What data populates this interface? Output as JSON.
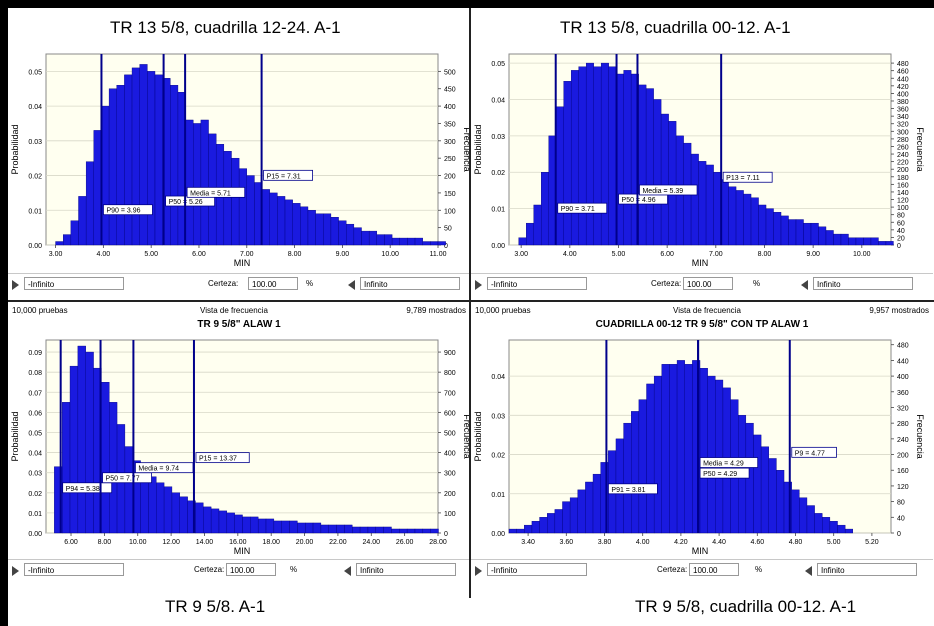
{
  "captions": [
    "TR 13 5/8, cuadrilla 12-24. A-1",
    "TR 13 5/8, cuadrilla 00-12. A-1",
    "TR 9 5/8. A-1",
    "TR 9 5/8, cuadrilla 00-12. A-1"
  ],
  "colors": {
    "bar": "#1a1adf",
    "bar_edge": "#000080",
    "marker": "#00008b",
    "plot_bg": "#fffff0",
    "grid": "#d8d8c8"
  },
  "panels": [
    {
      "trials": "",
      "view": "",
      "shown": "",
      "title": "",
      "controls": {
        "lower": "-Infinito",
        "certainty_label": "Certeza:",
        "certainty": "100.00",
        "unit": "%",
        "upper": "Infinito"
      }
    },
    {
      "trials": "",
      "view": "",
      "shown": "",
      "title": "",
      "controls": {
        "lower": "-Infinito",
        "certainty_label": "Certeza:",
        "certainty": "100.00",
        "unit": "%",
        "upper": "Infinito"
      }
    },
    {
      "trials": "10,000 pruebas",
      "view": "Vista de frecuencia",
      "shown": "9,789 mostrados",
      "title": "TR 9 5/8\" ALAW 1",
      "controls": {
        "lower": "-Infinito",
        "certainty_label": "Certeza:",
        "certainty": "100.00",
        "unit": "%",
        "upper": "Infinito"
      }
    },
    {
      "trials": "10,000 pruebas",
      "view": "Vista de frecuencia",
      "shown": "9,957 mostrados",
      "title": "CUADRILLA 00-12 TR 9 5/8\" CON TP ALAW 1",
      "controls": {
        "lower": "-Infinito",
        "certainty_label": "Certeza:",
        "certainty": "100.00",
        "unit": "%",
        "upper": "Infinito"
      }
    }
  ],
  "chart_data": [
    {
      "type": "bar",
      "xlabel": "MIN",
      "ylabel": "Probabilidad",
      "y2label": "Frecuencia",
      "xlim": [
        2.8,
        11.0
      ],
      "ylim": [
        0,
        0.055
      ],
      "y2lim": [
        0,
        550
      ],
      "xticks": [
        "3.00",
        "4.00",
        "5.00",
        "6.00",
        "7.00",
        "8.00",
        "9.00",
        "10.00",
        "11.00"
      ],
      "yticks": [
        "0.00",
        "0.01",
        "0.02",
        "0.03",
        "0.04",
        "0.05"
      ],
      "y2ticks": [
        "0",
        "50",
        "100",
        "150",
        "200",
        "250",
        "300",
        "350",
        "400",
        "450",
        "500"
      ],
      "bin_start": 3.0,
      "bin_width": 0.16,
      "values": [
        0.001,
        0.003,
        0.007,
        0.014,
        0.024,
        0.033,
        0.04,
        0.045,
        0.046,
        0.049,
        0.051,
        0.052,
        0.05,
        0.049,
        0.048,
        0.046,
        0.044,
        0.036,
        0.035,
        0.036,
        0.032,
        0.029,
        0.027,
        0.025,
        0.022,
        0.02,
        0.018,
        0.016,
        0.015,
        0.014,
        0.013,
        0.012,
        0.011,
        0.01,
        0.009,
        0.009,
        0.008,
        0.007,
        0.006,
        0.005,
        0.004,
        0.004,
        0.003,
        0.003,
        0.002,
        0.002,
        0.002,
        0.002,
        0.001,
        0.001,
        0.001
      ],
      "markers": [
        {
          "x": 3.96,
          "label": "P90 = 3.96",
          "label_y": 0.0093
        },
        {
          "x": 5.26,
          "label": "P50 = 5.26",
          "label_y": 0.0118
        },
        {
          "x": 5.71,
          "label": "Media = 5.71",
          "label_y": 0.0143
        },
        {
          "x": 7.31,
          "label": "P15 = 7.31",
          "label_y": 0.0192
        }
      ]
    },
    {
      "type": "bar",
      "xlabel": "MIN",
      "ylabel": "Probabilidad",
      "y2label": "Frecuencia",
      "xlim": [
        2.75,
        10.6
      ],
      "ylim": [
        0,
        0.0525
      ],
      "y2lim": [
        0,
        504
      ],
      "xticks": [
        "3.00",
        "4.00",
        "5.00",
        "6.00",
        "7.00",
        "8.00",
        "9.00",
        "10.00"
      ],
      "yticks": [
        "0.00",
        "0.01",
        "0.02",
        "0.03",
        "0.04",
        "0.05"
      ],
      "y2ticks": [
        "0",
        "20",
        "40",
        "60",
        "80",
        "100",
        "120",
        "140",
        "160",
        "180",
        "200",
        "220",
        "240",
        "260",
        "280",
        "300",
        "320",
        "340",
        "360",
        "380",
        "400",
        "420",
        "440",
        "460",
        "480"
      ],
      "bin_start": 2.95,
      "bin_width": 0.154,
      "values": [
        0.002,
        0.006,
        0.011,
        0.02,
        0.03,
        0.038,
        0.045,
        0.048,
        0.049,
        0.05,
        0.049,
        0.05,
        0.049,
        0.047,
        0.048,
        0.047,
        0.044,
        0.043,
        0.04,
        0.036,
        0.034,
        0.03,
        0.028,
        0.025,
        0.023,
        0.022,
        0.02,
        0.018,
        0.016,
        0.015,
        0.014,
        0.013,
        0.011,
        0.01,
        0.009,
        0.008,
        0.007,
        0.007,
        0.006,
        0.006,
        0.005,
        0.004,
        0.003,
        0.003,
        0.002,
        0.002,
        0.002,
        0.002,
        0.001,
        0.001
      ],
      "markers": [
        {
          "x": 3.71,
          "label": "P90 = 3.71",
          "label_y": 0.0093
        },
        {
          "x": 4.96,
          "label": "P50 = 4.96",
          "label_y": 0.0118
        },
        {
          "x": 5.39,
          "label": "Media = 5.39",
          "label_y": 0.0143
        },
        {
          "x": 7.11,
          "label": "P13 = 7.11",
          "label_y": 0.0178
        }
      ]
    },
    {
      "type": "bar",
      "xlabel": "MIN",
      "ylabel": "Probabilidad",
      "y2label": "Frecuencia",
      "xlim": [
        4.5,
        28.0
      ],
      "ylim": [
        0,
        0.096
      ],
      "y2lim": [
        0,
        960
      ],
      "xticks": [
        "6.00",
        "8.00",
        "10.00",
        "12.00",
        "14.00",
        "16.00",
        "18.00",
        "20.00",
        "22.00",
        "24.00",
        "26.00",
        "28.00"
      ],
      "yticks": [
        "0.00",
        "0.01",
        "0.02",
        "0.03",
        "0.04",
        "0.05",
        "0.06",
        "0.07",
        "0.08",
        "0.09"
      ],
      "y2ticks": [
        "0",
        "100",
        "200",
        "300",
        "400",
        "500",
        "600",
        "700",
        "800",
        "900"
      ],
      "bin_start": 5.0,
      "bin_width": 0.47,
      "values": [
        0.033,
        0.065,
        0.083,
        0.093,
        0.09,
        0.082,
        0.075,
        0.065,
        0.054,
        0.043,
        0.036,
        0.032,
        0.028,
        0.025,
        0.023,
        0.02,
        0.018,
        0.016,
        0.015,
        0.013,
        0.012,
        0.011,
        0.01,
        0.009,
        0.008,
        0.008,
        0.007,
        0.007,
        0.006,
        0.006,
        0.006,
        0.005,
        0.005,
        0.005,
        0.004,
        0.004,
        0.004,
        0.004,
        0.003,
        0.003,
        0.003,
        0.003,
        0.003,
        0.002,
        0.002,
        0.002,
        0.002,
        0.002,
        0.002
      ],
      "markers": [
        {
          "x": 5.38,
          "label": "P94 = 5.38",
          "label_y": 0.021
        },
        {
          "x": 7.77,
          "label": "P50 = 7.77",
          "label_y": 0.026
        },
        {
          "x": 9.74,
          "label": "Media = 9.74",
          "label_y": 0.031
        },
        {
          "x": 13.37,
          "label": "P15 = 13.37",
          "label_y": 0.036
        }
      ]
    },
    {
      "type": "bar",
      "xlabel": "MIN",
      "ylabel": "Probabilidad",
      "y2label": "Frecuencia",
      "xlim": [
        3.3,
        5.3
      ],
      "ylim": [
        0,
        0.0492
      ],
      "y2lim": [
        0,
        492
      ],
      "xticks": [
        "3.40",
        "3.60",
        "3.80",
        "4.00",
        "4.20",
        "4.40",
        "4.60",
        "4.80",
        "5.00",
        "5.20"
      ],
      "yticks": [
        "0.00",
        "0.01",
        "0.02",
        "0.03",
        "0.04"
      ],
      "y2ticks": [
        "0",
        "40",
        "80",
        "120",
        "160",
        "200",
        "240",
        "280",
        "320",
        "360",
        "400",
        "440",
        "480"
      ],
      "bin_start": 3.3,
      "bin_width": 0.04,
      "values": [
        0.001,
        0.001,
        0.002,
        0.003,
        0.004,
        0.005,
        0.006,
        0.008,
        0.009,
        0.011,
        0.013,
        0.015,
        0.018,
        0.021,
        0.024,
        0.028,
        0.031,
        0.034,
        0.038,
        0.04,
        0.043,
        0.043,
        0.044,
        0.043,
        0.044,
        0.042,
        0.04,
        0.039,
        0.037,
        0.034,
        0.03,
        0.028,
        0.025,
        0.022,
        0.019,
        0.016,
        0.013,
        0.011,
        0.009,
        0.007,
        0.005,
        0.004,
        0.003,
        0.002,
        0.001
      ],
      "markers": [
        {
          "x": 3.81,
          "label": "P91 = 3.81",
          "label_y": 0.0105
        },
        {
          "x": 4.29,
          "label": "P50 = 4.29",
          "label_y": 0.0145
        },
        {
          "x": 4.29,
          "label": "Media = 4.29",
          "label_y": 0.0172
        },
        {
          "x": 4.77,
          "label": "P9 = 4.77",
          "label_y": 0.0198
        }
      ]
    }
  ]
}
